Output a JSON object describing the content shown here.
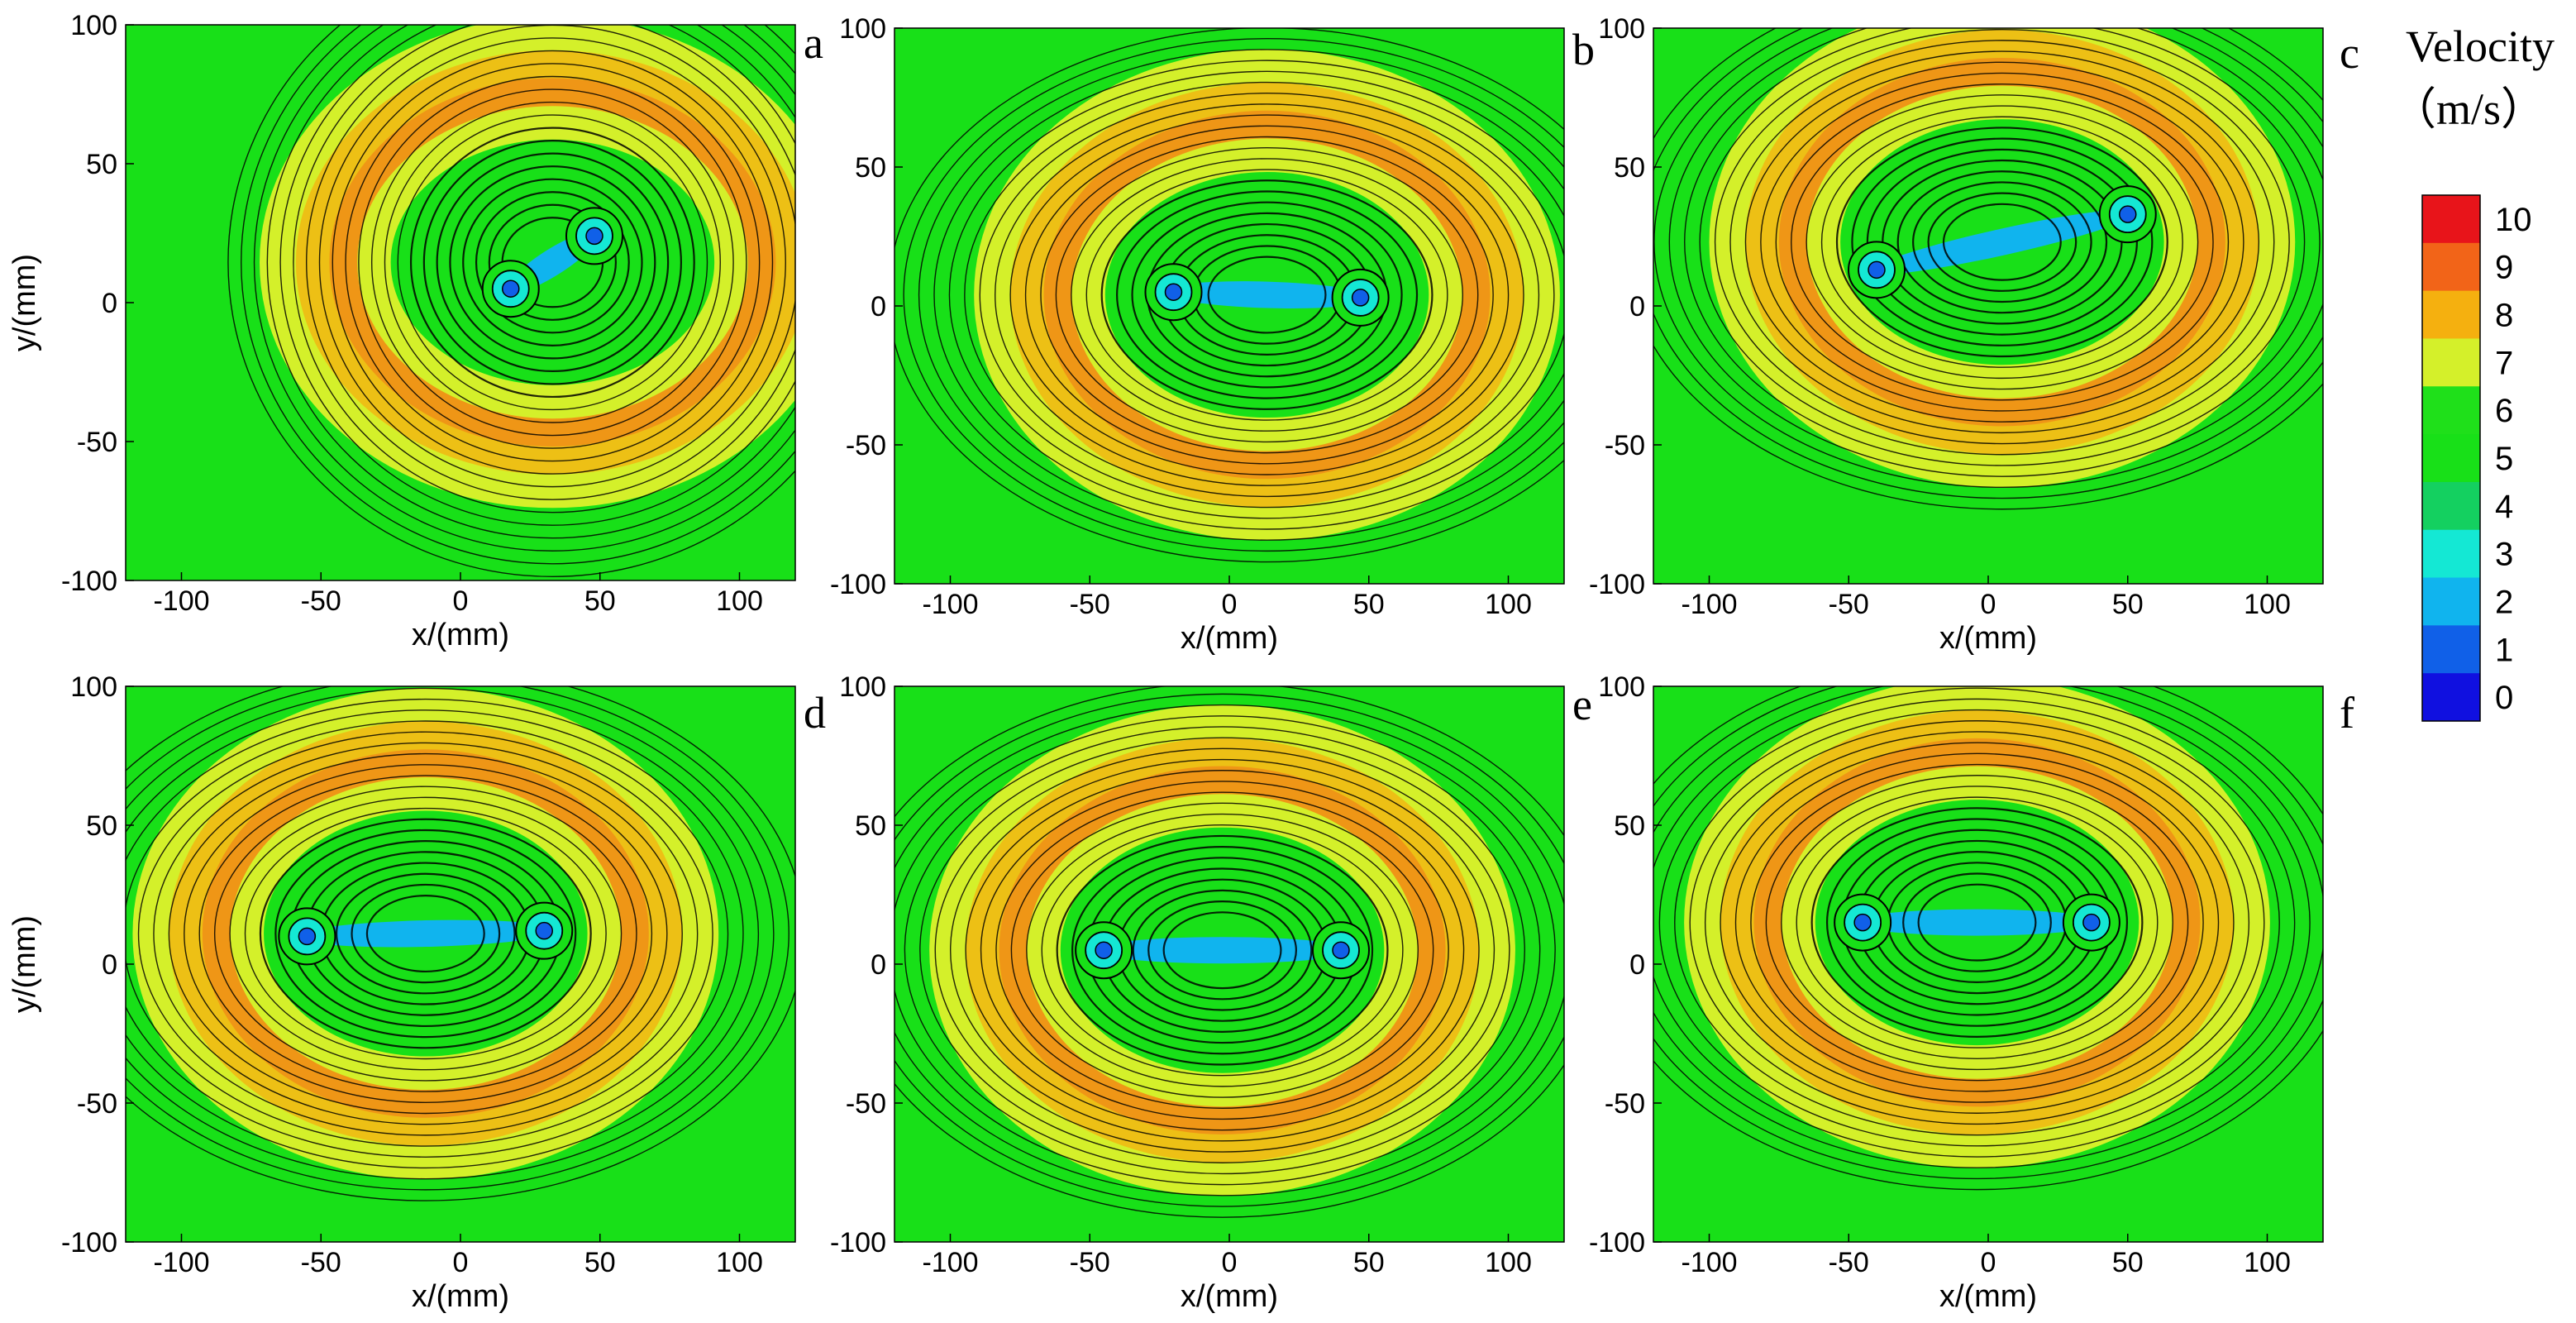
{
  "colorbar": {
    "title_line1": "Velocity",
    "title_line2": "（m/s）",
    "levels": [
      "10",
      "9",
      "8",
      "7",
      "6",
      "5",
      "4",
      "3",
      "2",
      "1",
      "0"
    ],
    "colors": [
      "#e8141a",
      "#f26418",
      "#f5b00f",
      "#d4f02a",
      "#1fe01a",
      "#18e018",
      "#14d060",
      "#14e8d4",
      "#10b4ee",
      "#1060e8",
      "#1010e0"
    ]
  },
  "chart_data": [
    {
      "panel": "a",
      "type": "heatmap",
      "xlabel": "x/(mm)",
      "ylabel": "y/(mm)",
      "xlim": [
        -120,
        120
      ],
      "ylim": [
        -100,
        100
      ],
      "xticks": [
        "-100",
        "-50",
        "0",
        "50",
        "100"
      ],
      "yticks": [
        "100",
        "50",
        "0",
        "-50",
        "-100"
      ],
      "vortex_centers": [
        [
          18,
          5
        ],
        [
          48,
          24
        ]
      ],
      "colorbar_range": [
        0,
        10
      ]
    },
    {
      "panel": "b",
      "type": "heatmap",
      "xlabel": "x/(mm)",
      "ylabel": "",
      "xlim": [
        -120,
        120
      ],
      "ylim": [
        -100,
        100
      ],
      "xticks": [
        "-100",
        "-50",
        "0",
        "50",
        "100"
      ],
      "yticks": [
        "100",
        "50",
        "0",
        "-50",
        "-100"
      ],
      "vortex_centers": [
        [
          -20,
          5
        ],
        [
          47,
          3
        ]
      ],
      "colorbar_range": [
        0,
        10
      ]
    },
    {
      "panel": "c",
      "type": "heatmap",
      "xlabel": "x/(mm)",
      "ylabel": "",
      "xlim": [
        -120,
        120
      ],
      "ylim": [
        -100,
        100
      ],
      "xticks": [
        "-100",
        "-50",
        "0",
        "50",
        "100"
      ],
      "yticks": [
        "100",
        "50",
        "0",
        "-50",
        "-100"
      ],
      "vortex_centers": [
        [
          -40,
          13
        ],
        [
          50,
          33
        ]
      ],
      "colorbar_range": [
        0,
        10
      ]
    },
    {
      "panel": "d",
      "type": "heatmap",
      "xlabel": "x/(mm)",
      "ylabel": "y/(mm)",
      "xlim": [
        -120,
        120
      ],
      "ylim": [
        -100,
        100
      ],
      "xticks": [
        "-100",
        "-50",
        "0",
        "50",
        "100"
      ],
      "yticks": [
        "100",
        "50",
        "0",
        "-50",
        "-100"
      ],
      "vortex_centers": [
        [
          -55,
          10
        ],
        [
          30,
          12
        ]
      ],
      "colorbar_range": [
        0,
        10
      ]
    },
    {
      "panel": "e",
      "type": "heatmap",
      "xlabel": "x/(mm)",
      "ylabel": "",
      "xlim": [
        -120,
        120
      ],
      "ylim": [
        -100,
        100
      ],
      "xticks": [
        "-100",
        "-50",
        "0",
        "50",
        "100"
      ],
      "yticks": [
        "100",
        "50",
        "0",
        "-50",
        "-100"
      ],
      "vortex_centers": [
        [
          -45,
          5
        ],
        [
          40,
          5
        ]
      ],
      "colorbar_range": [
        0,
        10
      ]
    },
    {
      "panel": "f",
      "type": "heatmap",
      "xlabel": "x/(mm)",
      "ylabel": "",
      "xlim": [
        -120,
        120
      ],
      "ylim": [
        -100,
        100
      ],
      "xticks": [
        "-100",
        "-50",
        "0",
        "50",
        "100"
      ],
      "yticks": [
        "100",
        "50",
        "0",
        "-50",
        "-100"
      ],
      "vortex_centers": [
        [
          -45,
          15
        ],
        [
          37,
          15
        ]
      ],
      "colorbar_range": [
        0,
        10
      ]
    }
  ]
}
